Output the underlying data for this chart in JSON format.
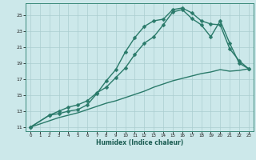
{
  "xlabel": "Humidex (Indice chaleur)",
  "bg_color": "#cce8ea",
  "grid_color": "#aacdd0",
  "line_color": "#2a7a6a",
  "xlim": [
    -0.5,
    23.5
  ],
  "ylim": [
    10.5,
    26.5
  ],
  "xticks": [
    0,
    1,
    2,
    3,
    4,
    5,
    6,
    7,
    8,
    9,
    10,
    11,
    12,
    13,
    14,
    15,
    16,
    17,
    18,
    19,
    20,
    21,
    22,
    23
  ],
  "yticks": [
    11,
    13,
    15,
    17,
    19,
    21,
    23,
    25
  ],
  "line1_x": [
    0,
    2,
    3,
    4,
    5,
    6,
    7,
    8,
    9,
    10,
    11,
    12,
    13,
    14,
    15,
    16,
    17,
    18,
    19,
    20,
    21,
    22,
    23
  ],
  "line1_y": [
    11,
    12.5,
    12.7,
    13.0,
    13.2,
    13.8,
    15.2,
    16.8,
    18.2,
    20.4,
    22.2,
    23.6,
    24.3,
    24.5,
    25.7,
    25.9,
    25.3,
    24.3,
    23.9,
    23.8,
    20.8,
    19.3,
    18.3
  ],
  "line2_x": [
    0,
    2,
    3,
    4,
    5,
    6,
    7,
    8,
    9,
    10,
    11,
    12,
    13,
    14,
    15,
    16,
    17,
    18,
    19,
    20,
    21,
    22,
    23
  ],
  "line2_y": [
    11,
    12.5,
    13.0,
    13.5,
    13.8,
    14.3,
    15.3,
    16.0,
    17.2,
    18.4,
    20.1,
    21.5,
    22.3,
    23.8,
    25.4,
    25.7,
    24.6,
    23.8,
    22.3,
    24.3,
    21.5,
    19.0,
    18.3
  ],
  "line3_x": [
    0,
    2,
    3,
    4,
    5,
    6,
    7,
    8,
    9,
    10,
    11,
    12,
    13,
    14,
    15,
    16,
    17,
    18,
    19,
    20,
    21,
    22,
    23
  ],
  "line3_y": [
    11,
    11.8,
    12.2,
    12.5,
    12.8,
    13.2,
    13.6,
    14.0,
    14.3,
    14.7,
    15.1,
    15.5,
    16.0,
    16.4,
    16.8,
    17.1,
    17.4,
    17.7,
    17.9,
    18.2,
    18.0,
    18.1,
    18.3
  ]
}
